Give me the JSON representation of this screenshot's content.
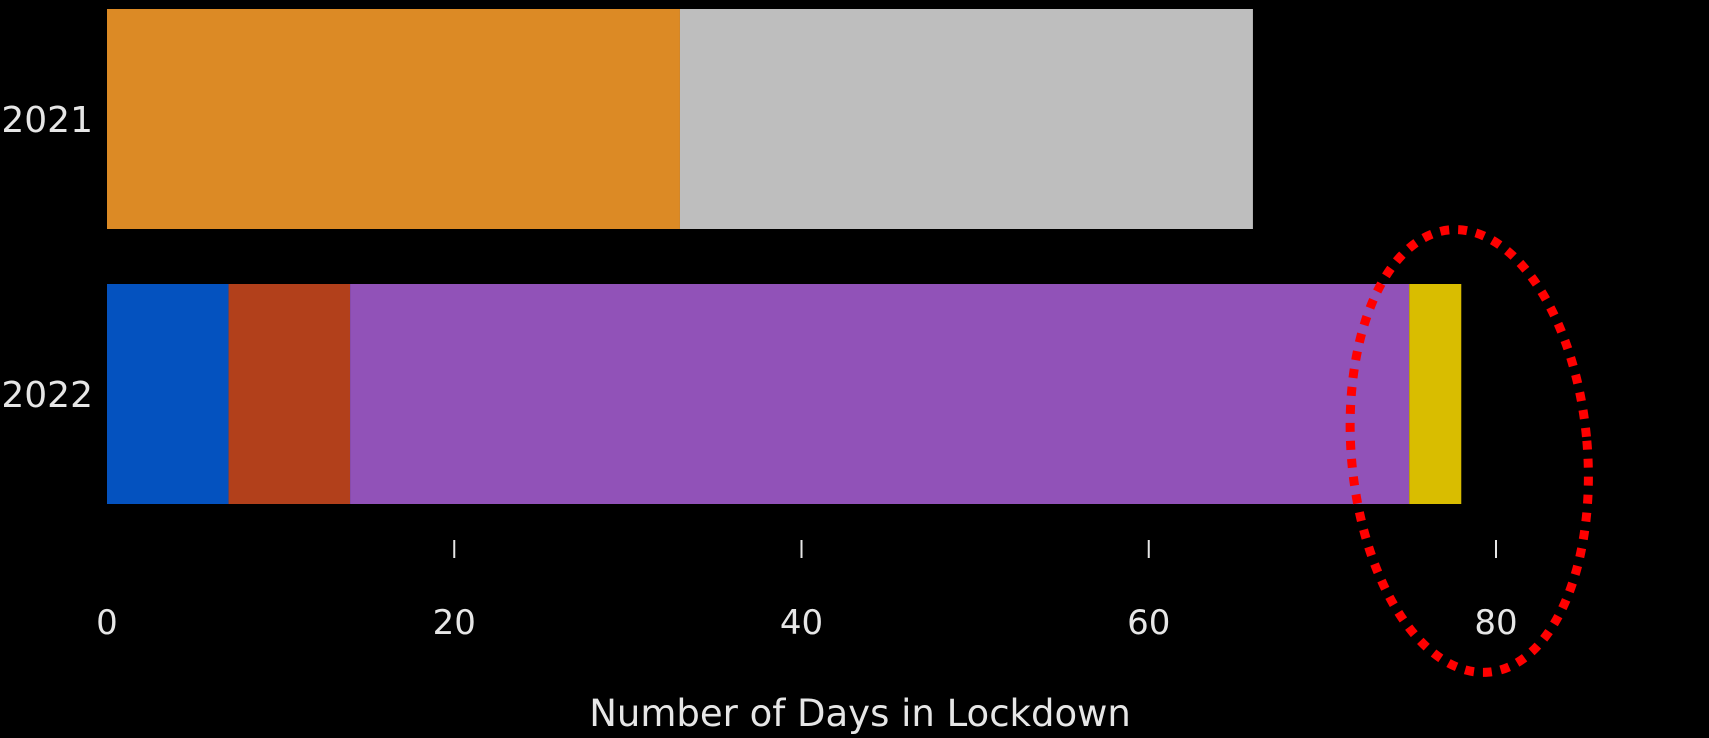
{
  "chart_data": {
    "type": "bar",
    "orientation": "horizontal",
    "stacked": true,
    "categories": [
      "2021",
      "2022"
    ],
    "segments": [
      [
        {
          "value": 33,
          "color": "#dc8a25"
        },
        {
          "value": 33,
          "color": "#bebebe"
        }
      ],
      [
        {
          "value": 7,
          "color": "#0452bf"
        },
        {
          "value": 7,
          "color": "#b2401b"
        },
        {
          "value": 61,
          "color": "#9152b8"
        },
        {
          "value": 3,
          "color": "#d9bd00"
        }
      ]
    ],
    "xlabel": "Number of Days in Lockdown",
    "xlim": [
      0,
      80
    ],
    "xticks": [
      0,
      20,
      40,
      60,
      80
    ],
    "grid": false,
    "annotations": [
      {
        "type": "dotted-ellipse",
        "color": "#ff0000",
        "around_x": 78
      }
    ]
  },
  "colors": {
    "background": "#000000",
    "text": "#e6e6e6",
    "annotation": "#ff0000"
  }
}
